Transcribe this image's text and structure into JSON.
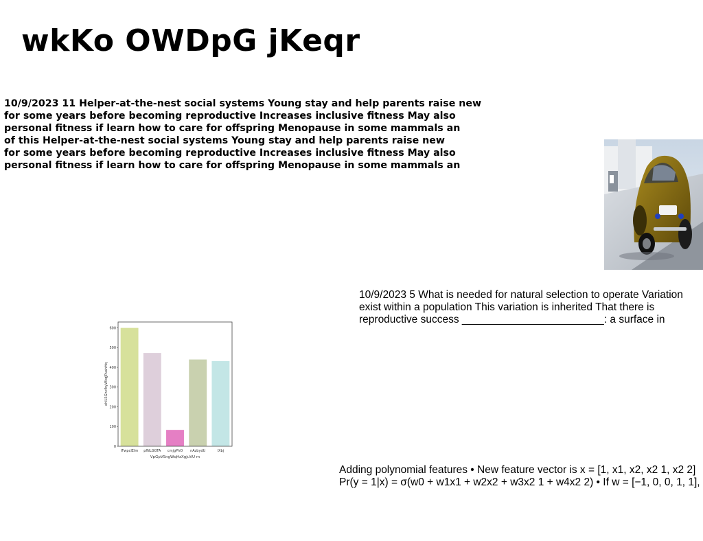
{
  "title": "wkKo OWDpG jKeqr",
  "bold_block": {
    "lines": [
      "10/9/2023 11 Helper-at-the-nest social systems Young stay and help parents raise new",
      "for some years before becoming reproductive Increases inclusive fitness May also",
      "personal fitness if learn how to care for offspring Menopause in some mammals an",
      "of this Helper-at-the-nest social systems Young stay and help parents raise new",
      "for some years before becoming reproductive Increases inclusive fitness May also",
      "personal fitness if learn how to care for offspring Menopause in some mammals an"
    ]
  },
  "text_a": {
    "lines": [
      "10/9/2023 5 What is needed for natural selection to operate Variation",
      "exist within a population This variation is inherited That there is",
      "reproductive success ________________________: a surface in"
    ]
  },
  "text_b": {
    "lines": [
      "Adding polynomial features • New feature vector is x = [1, x1, x2, x2 1, x2 2]",
      "Pr(y = 1|x) = σ(w0 + w1x1 + w2x2 + w3x2 1 + w4x2 2) • If w = [−1, 0, 0, 1, 1],"
    ]
  },
  "chart_data": {
    "type": "bar",
    "categories": [
      "IFwpcIElm",
      "pfNLGGTA",
      "cmjgPhO",
      "nAzbydU",
      "IXbj"
    ],
    "values": [
      600,
      473,
      83,
      440,
      432
    ],
    "colors": [
      "#d7e19b",
      "#decfdb",
      "#e57fc4",
      "#c9d1af",
      "#c3e6e6"
    ],
    "xlabel": "VpGpVSngWqHzXgjuVU m",
    "ylabel": "ehlLSGhcfbyWkqJPuahHq",
    "yticks": [
      0,
      100,
      200,
      300,
      400,
      500,
      600
    ],
    "ylim": [
      0,
      630
    ],
    "grid": false
  }
}
